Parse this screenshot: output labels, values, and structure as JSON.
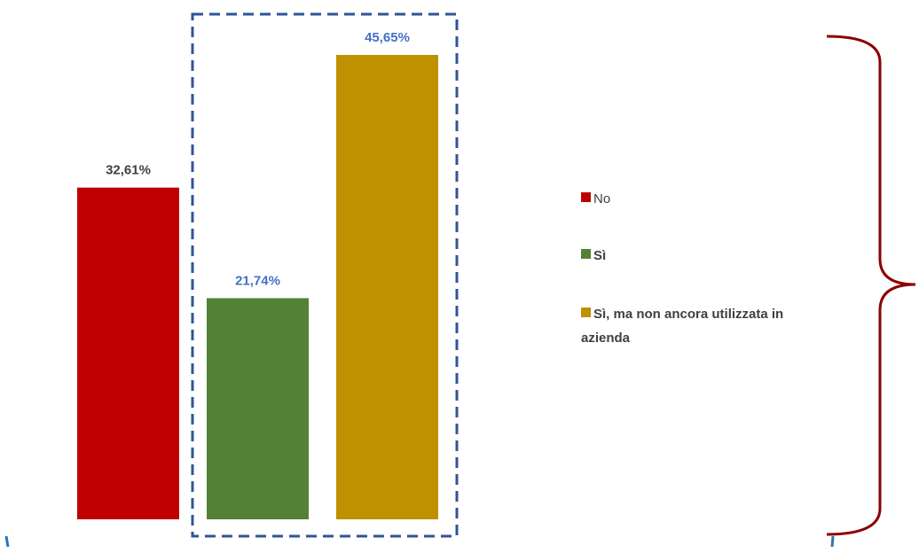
{
  "chart_data": {
    "type": "bar",
    "categories": [
      "No",
      "Sì",
      "Sì, ma non ancora utilizzata in azienda"
    ],
    "values": [
      32.61,
      21.74,
      45.65
    ],
    "value_labels": [
      "32,61%",
      "21,74%",
      "45,65%"
    ],
    "colors": [
      "#c00000",
      "#538135",
      "#bf9000"
    ],
    "label_colors": [
      "#404040",
      "#4472c4",
      "#4472c4"
    ],
    "ylim": [
      0,
      50
    ],
    "grid": false,
    "legend": {
      "placement": "right",
      "entries": [
        {
          "label": "No",
          "color": "#c00000",
          "bold": false
        },
        {
          "label": "Sì",
          "color": "#538135",
          "bold": true
        },
        {
          "label": "Sì, ma non ancora utilizzata in azienda",
          "lines": [
            "Sì, ma non ancora utilizzata in",
            "azienda"
          ],
          "color": "#bf9000",
          "bold": true
        }
      ]
    },
    "annotations": {
      "highlight_box": "dashed box around Sì bars",
      "highlight_color": "#2f5597",
      "brace_color": "#8b0000",
      "corner_mark_color": "#2e75b6"
    }
  }
}
